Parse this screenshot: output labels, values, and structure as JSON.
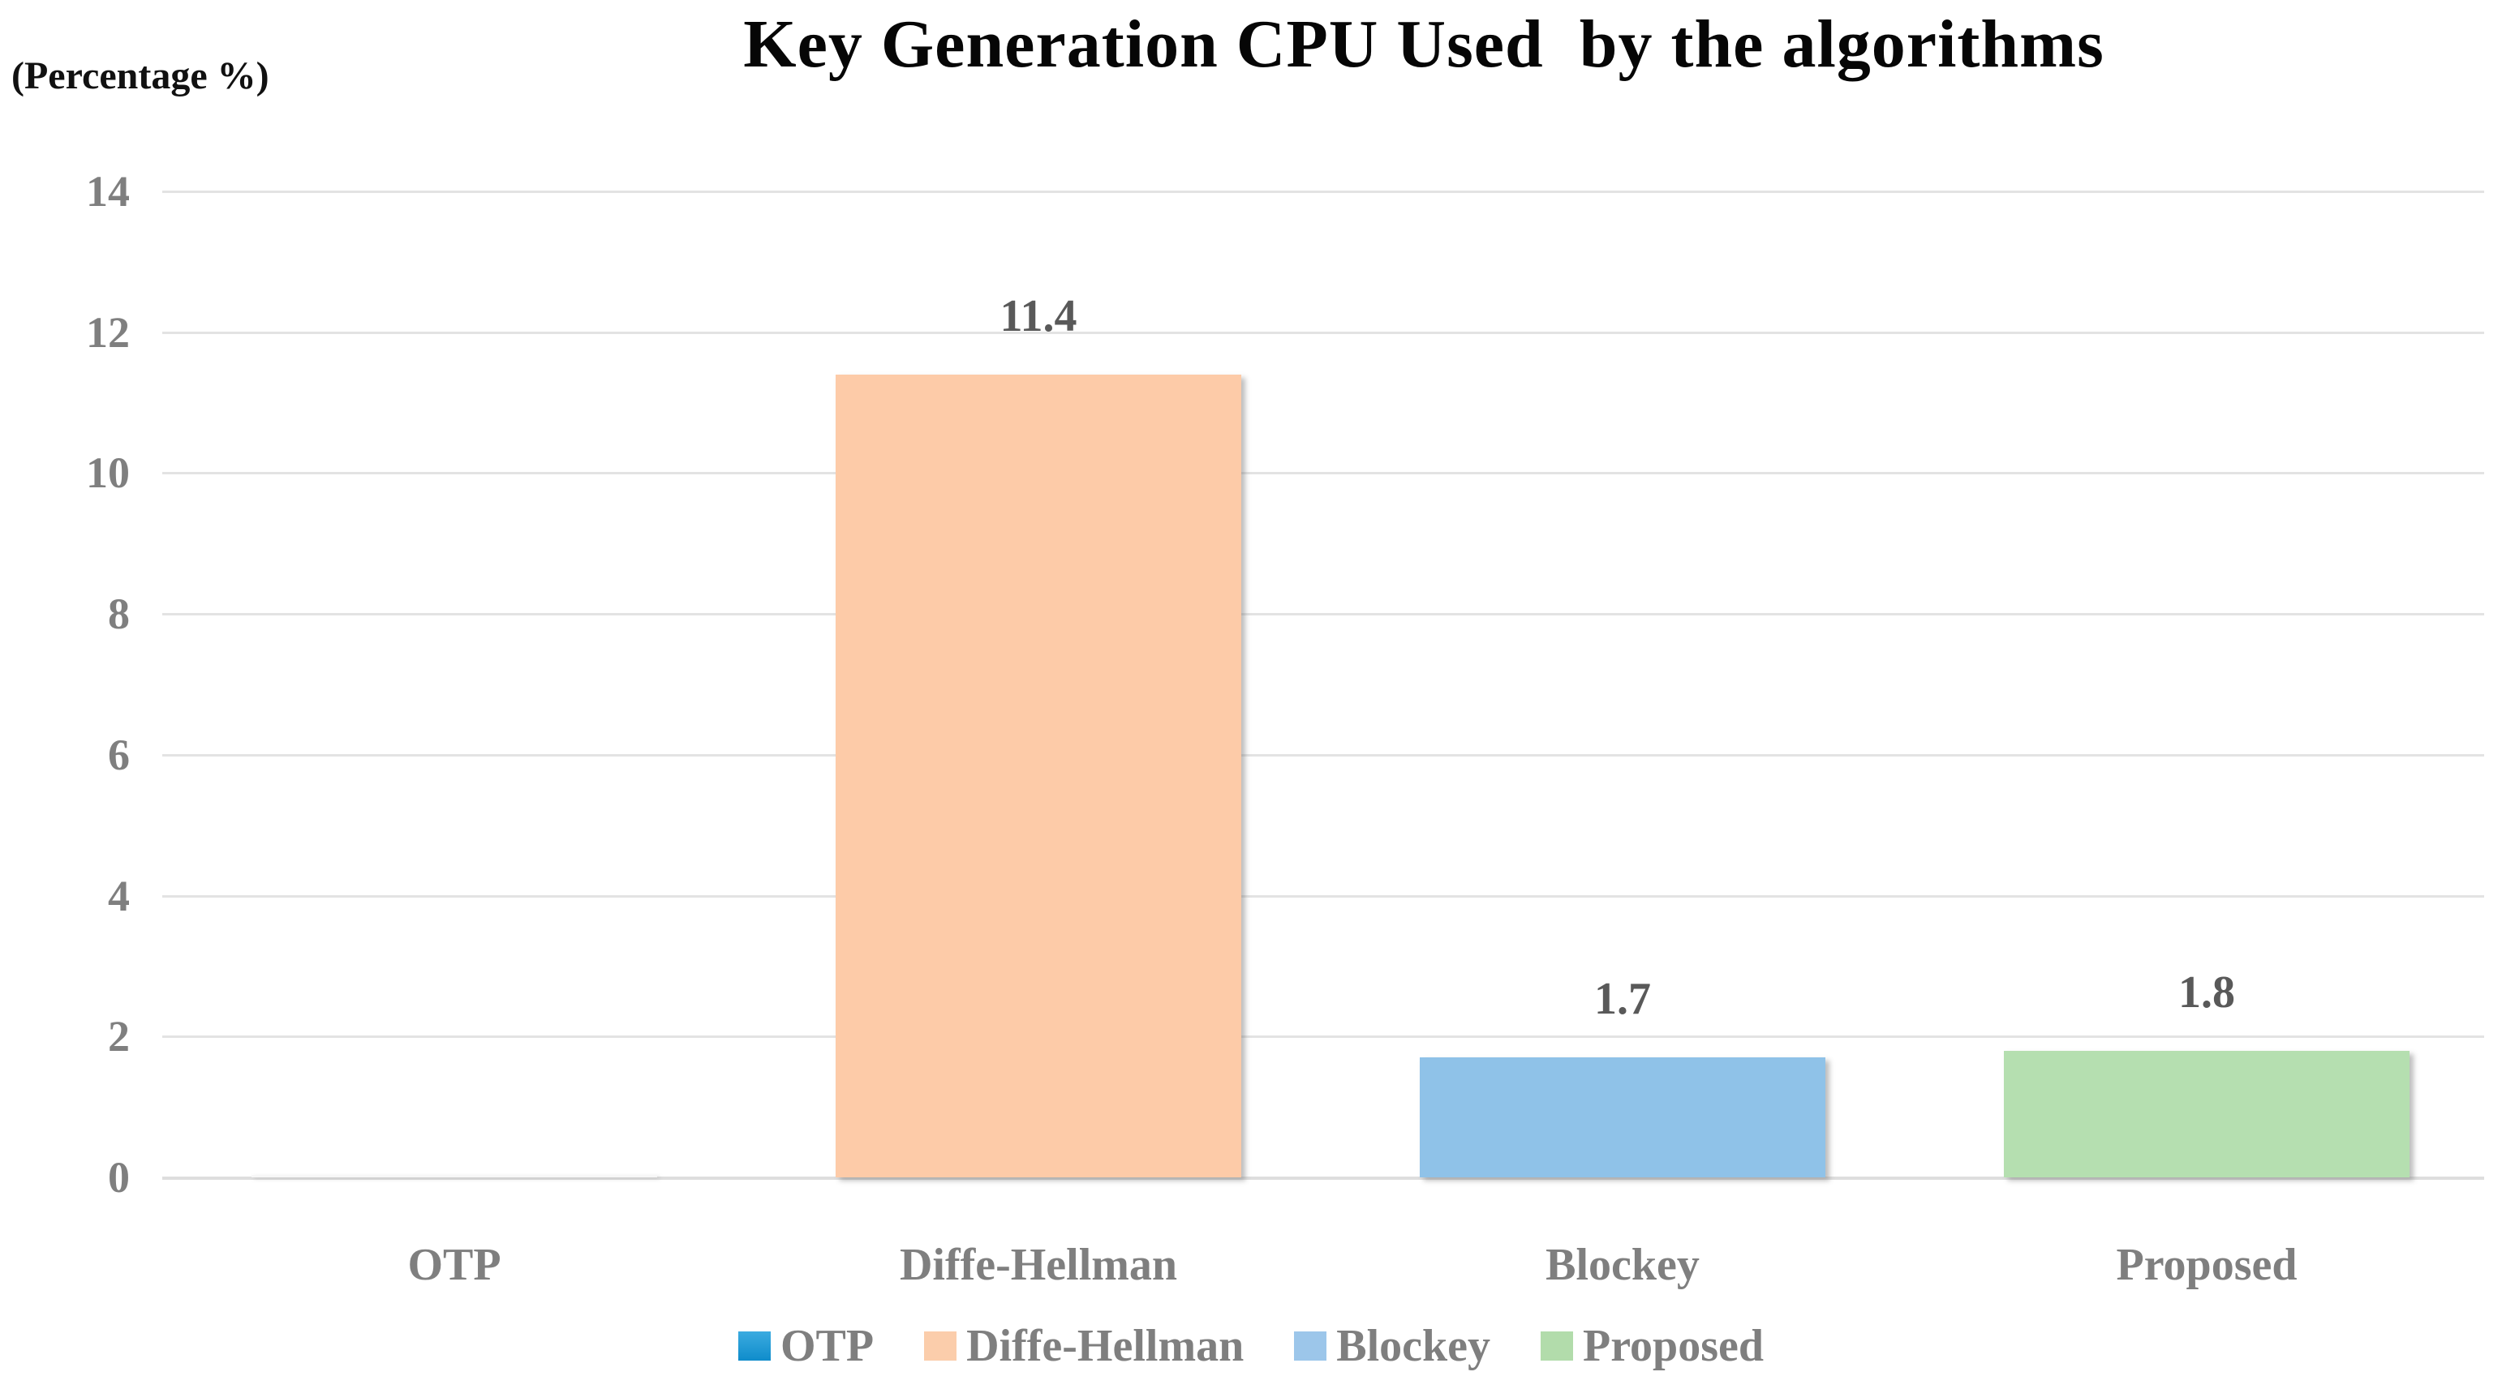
{
  "chart_data": {
    "type": "bar",
    "title": "Key Generation CPU Used  by the algorithms",
    "ylabel": "(Percentage %)",
    "xlabel": "",
    "categories": [
      "OTP",
      "Diffe-Hellman",
      "Blockey",
      "Proposed"
    ],
    "values": [
      0.02,
      11.4,
      1.7,
      1.8
    ],
    "data_labels": [
      "",
      "11.4",
      "1.7",
      "1.8"
    ],
    "series_colors": [
      "#1E9CD9",
      "#FDCBA8",
      "#8FC2E8",
      "#B5DFB0"
    ],
    "legend": [
      {
        "label": "OTP",
        "color": "#1E9CD9"
      },
      {
        "label": "Diffe-Hellman",
        "color": "#FBCDAB"
      },
      {
        "label": "Blockey",
        "color": "#9CC6EA"
      },
      {
        "label": "Proposed",
        "color": "#B2DCAB"
      }
    ],
    "ylim": [
      0,
      14
    ],
    "ytick_step": 2,
    "grid": true,
    "gridline_color": "#E3E3E3",
    "tick_color": "#7F7F7F",
    "data_label_color": "#595959",
    "legend_position": "bottom"
  }
}
